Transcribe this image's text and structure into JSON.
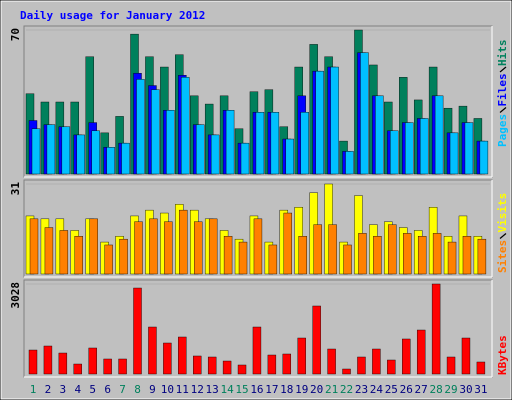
{
  "chart_data": [
    {
      "type": "bar",
      "title": "Daily usage for January 2012",
      "series": [
        {
          "name": "Hits",
          "color": "#00805c",
          "values": [
            39,
            35,
            35,
            35,
            57,
            20,
            28,
            68,
            57,
            52,
            58,
            38,
            34,
            38,
            22,
            40,
            41,
            23,
            52,
            63,
            57,
            16,
            70,
            53,
            35,
            47,
            36,
            52,
            32,
            33,
            27
          ]
        },
        {
          "name": "Files",
          "color": "#0000ff",
          "values": [
            26,
            24,
            23,
            19,
            25,
            13,
            15,
            49,
            43,
            31,
            48,
            24,
            19,
            31,
            15,
            30,
            30,
            17,
            38,
            50,
            52,
            11,
            59,
            38,
            21,
            25,
            27,
            38,
            20,
            25,
            16
          ]
        },
        {
          "name": "Pages",
          "color": "#00c0ff",
          "values": [
            22,
            24,
            23,
            19,
            21,
            13,
            15,
            46,
            41,
            31,
            47,
            24,
            19,
            31,
            15,
            30,
            30,
            17,
            30,
            50,
            52,
            11,
            59,
            38,
            21,
            25,
            27,
            38,
            20,
            25,
            16
          ]
        }
      ],
      "ylim": [
        0,
        70
      ],
      "yticks": [
        70
      ]
    },
    {
      "type": "bar",
      "series": [
        {
          "name": "Visits",
          "color": "#ffff00",
          "values": [
            20,
            19,
            19,
            15,
            19,
            11,
            13,
            20,
            22,
            21,
            24,
            22,
            19,
            15,
            12,
            20,
            11,
            22,
            23,
            28,
            31,
            11,
            27,
            17,
            18,
            16,
            15,
            23,
            13,
            20,
            13
          ]
        },
        {
          "name": "Sites",
          "color": "#ff8000",
          "values": [
            19,
            16,
            15,
            13,
            19,
            10,
            12,
            18,
            19,
            18,
            22,
            18,
            19,
            13,
            11,
            19,
            10,
            21,
            13,
            17,
            17,
            10,
            14,
            13,
            17,
            14,
            13,
            14,
            11,
            13,
            12
          ]
        }
      ],
      "ylim": [
        0,
        31
      ],
      "yticks": [
        31
      ]
    },
    {
      "type": "bar",
      "categories": [
        "1",
        "2",
        "3",
        "4",
        "5",
        "6",
        "7",
        "8",
        "9",
        "10",
        "11",
        "12",
        "13",
        "14",
        "15",
        "16",
        "17",
        "18",
        "19",
        "20",
        "21",
        "22",
        "23",
        "24",
        "25",
        "26",
        "27",
        "28",
        "29",
        "30",
        "31"
      ],
      "category_colors": [
        "#00805c",
        "#000080",
        "#000080",
        "#000080",
        "#000080",
        "#000080",
        "#00805c",
        "#00805c",
        "#000080",
        "#000080",
        "#000080",
        "#000080",
        "#000080",
        "#00805c",
        "#00805c",
        "#000080",
        "#000080",
        "#000080",
        "#000080",
        "#000080",
        "#00805c",
        "#00805c",
        "#000080",
        "#000080",
        "#000080",
        "#000080",
        "#000080",
        "#00805c",
        "#00805c",
        "#000080",
        "#000080"
      ],
      "series": [
        {
          "name": "KBytes",
          "color": "#ff0000",
          "values": [
            807,
            942,
            706,
            336,
            875,
            505,
            505,
            2893,
            1581,
            1043,
            1245,
            606,
            572,
            437,
            303,
            1581,
            639,
            673,
            1211,
            2288,
            841,
            168,
            572,
            841,
            471,
            1178,
            1480,
            3028,
            572,
            1211,
            404
          ]
        }
      ],
      "ylim": [
        0,
        3028
      ],
      "yticks": [
        3028
      ]
    }
  ]
}
